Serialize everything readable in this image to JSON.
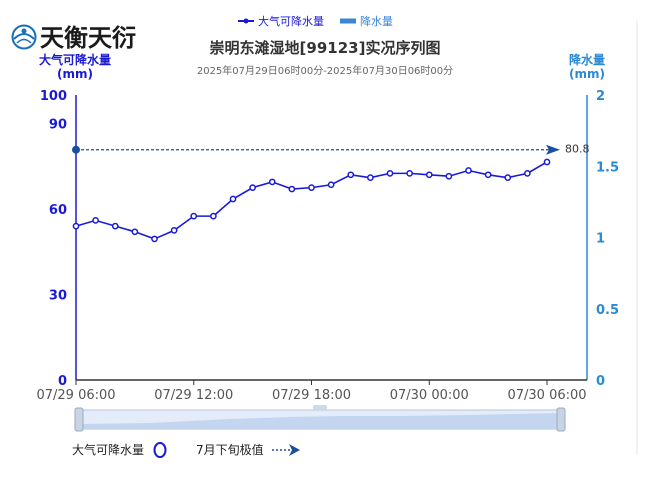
{
  "logo": {
    "text": "天衡天衍"
  },
  "legend": {
    "items": [
      {
        "label": "大气可降水量",
        "color": "#1a1ad6"
      },
      {
        "label": "降水量",
        "color": "#3a86d4"
      }
    ]
  },
  "bottom_legend": {
    "pw_label": "大气可降水量",
    "extreme_label": "7月下旬极值"
  },
  "chart_data": {
    "type": "line",
    "title": "崇明东滩湿地[99123]实况序列图",
    "subtitle": "2025年07月29日06时00分-2025年07月30日06时00分",
    "y_left": {
      "label": "大气可降水量",
      "unit": "(mm)",
      "range": [
        0,
        100
      ],
      "ticks": [
        0,
        30,
        60,
        90,
        100
      ]
    },
    "y_right": {
      "label": "降水量",
      "unit": "(mm)",
      "range": [
        0,
        2
      ],
      "ticks": [
        "0",
        "0.5",
        "1",
        "1.5",
        "2"
      ]
    },
    "x_ticks": [
      {
        "hour": 0,
        "label": "07/29 06:00"
      },
      {
        "hour": 6,
        "label": "07/29 12:00"
      },
      {
        "hour": 12,
        "label": "07/29 18:00"
      },
      {
        "hour": 18,
        "label": "07/30 00:00"
      },
      {
        "hour": 24,
        "label": "07/30 06:00"
      }
    ],
    "series": [
      {
        "name": "大气可降水量",
        "color": "#1a1ad6",
        "x": [
          0,
          1,
          2,
          3,
          4,
          5,
          6,
          7,
          8,
          9,
          10,
          11,
          12,
          13,
          14,
          15,
          16,
          17,
          18,
          19,
          20,
          21,
          22,
          23,
          24
        ],
        "values": [
          54,
          56,
          54,
          52,
          49.5,
          52.5,
          57.5,
          57.5,
          63.5,
          67.5,
          69.5,
          67,
          67.5,
          68.5,
          72,
          71,
          72.5,
          72.5,
          72,
          71.5,
          73.5,
          72,
          71,
          72.5,
          76.5
        ]
      }
    ],
    "reference_line": {
      "name": "7月下旬极值",
      "value": 80.8,
      "label": "80.8",
      "color": "#1a4fa0"
    },
    "grid": false
  }
}
